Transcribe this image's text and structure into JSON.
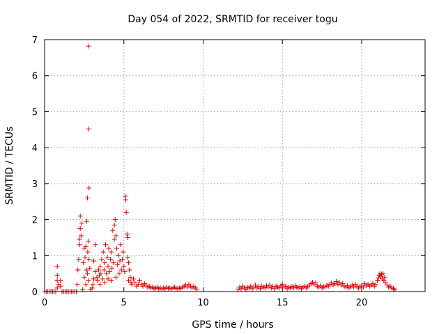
{
  "chart_data": {
    "type": "scatter",
    "title": "Day 054 of 2022, SRMTID for receiver togu",
    "xlabel": "GPS time / hours",
    "ylabel": "SRMTID / TECUs",
    "xlim": [
      0,
      24
    ],
    "ylim": [
      0,
      7
    ],
    "xticks": [
      0,
      5,
      10,
      15,
      20
    ],
    "yticks": [
      0,
      1,
      2,
      3,
      4,
      5,
      6,
      7
    ],
    "grid": true,
    "marker": "plus",
    "color": "#e00000",
    "points": [
      [
        0.0,
        0.0
      ],
      [
        0.1,
        0.0
      ],
      [
        0.2,
        0.0
      ],
      [
        0.3,
        0.0
      ],
      [
        0.4,
        0.0
      ],
      [
        0.5,
        0.0
      ],
      [
        0.6,
        0.0
      ],
      [
        0.7,
        0.0
      ],
      [
        0.8,
        0.1
      ],
      [
        0.8,
        0.3
      ],
      [
        0.8,
        0.45
      ],
      [
        0.8,
        0.7
      ],
      [
        0.9,
        0.2
      ],
      [
        1.0,
        0.15
      ],
      [
        1.0,
        0.3
      ],
      [
        1.1,
        0.0
      ],
      [
        1.2,
        0.0
      ],
      [
        1.3,
        0.0
      ],
      [
        1.4,
        0.0
      ],
      [
        1.5,
        0.0
      ],
      [
        1.6,
        0.0
      ],
      [
        1.7,
        0.0
      ],
      [
        1.8,
        0.0
      ],
      [
        1.9,
        0.0
      ],
      [
        2.0,
        0.0
      ],
      [
        2.05,
        0.2
      ],
      [
        2.1,
        0.6
      ],
      [
        2.15,
        0.9
      ],
      [
        2.2,
        1.3
      ],
      [
        2.2,
        1.45
      ],
      [
        2.25,
        1.75
      ],
      [
        2.25,
        2.1
      ],
      [
        2.3,
        1.55
      ],
      [
        2.35,
        1.9
      ],
      [
        2.4,
        0.05
      ],
      [
        2.45,
        0.8
      ],
      [
        2.5,
        1.2
      ],
      [
        2.5,
        0.4
      ],
      [
        2.55,
        0.95
      ],
      [
        2.6,
        1.25
      ],
      [
        2.6,
        0.2
      ],
      [
        2.65,
        0.6
      ],
      [
        2.65,
        1.95
      ],
      [
        2.7,
        0.5
      ],
      [
        2.7,
        2.6
      ],
      [
        2.72,
        1.1
      ],
      [
        2.75,
        0.3
      ],
      [
        2.75,
        1.4
      ],
      [
        2.78,
        6.82
      ],
      [
        2.78,
        4.52
      ],
      [
        2.8,
        2.88
      ],
      [
        2.8,
        0.9
      ],
      [
        2.85,
        0.65
      ],
      [
        2.9,
        0.05
      ],
      [
        3.0,
        0.1
      ],
      [
        3.05,
        0.2
      ],
      [
        3.1,
        0.85
      ],
      [
        3.1,
        0.35
      ],
      [
        3.2,
        1.3
      ],
      [
        3.2,
        0.55
      ],
      [
        3.3,
        0.4
      ],
      [
        3.35,
        0.3
      ],
      [
        3.4,
        0.6
      ],
      [
        3.45,
        0.45
      ],
      [
        3.5,
        0.7
      ],
      [
        3.5,
        0.2
      ],
      [
        3.55,
        0.5
      ],
      [
        3.6,
        0.9
      ],
      [
        3.65,
        0.35
      ],
      [
        3.7,
        1.1
      ],
      [
        3.75,
        0.6
      ],
      [
        3.8,
        0.8
      ],
      [
        3.8,
        0.25
      ],
      [
        3.85,
        1.3
      ],
      [
        3.9,
        0.5
      ],
      [
        3.95,
        0.95
      ],
      [
        4.0,
        0.7
      ],
      [
        4.0,
        0.35
      ],
      [
        4.05,
        1.2
      ],
      [
        4.1,
        0.55
      ],
      [
        4.15,
        0.9
      ],
      [
        4.2,
        0.3
      ],
      [
        4.2,
        1.1
      ],
      [
        4.25,
        0.65
      ],
      [
        4.3,
        1.7
      ],
      [
        4.35,
        0.8
      ],
      [
        4.4,
        1.85
      ],
      [
        4.4,
        1.45
      ],
      [
        4.45,
        2.0
      ],
      [
        4.5,
        1.55
      ],
      [
        4.5,
        0.4
      ],
      [
        4.55,
        1.2
      ],
      [
        4.6,
        0.75
      ],
      [
        4.65,
        1.0
      ],
      [
        4.7,
        0.5
      ],
      [
        4.75,
        0.85
      ],
      [
        4.8,
        1.3
      ],
      [
        4.85,
        0.6
      ],
      [
        4.9,
        0.9
      ],
      [
        4.95,
        1.1
      ],
      [
        5.0,
        0.7
      ],
      [
        5.05,
        0.55
      ],
      [
        5.1,
        2.65
      ],
      [
        5.12,
        2.55
      ],
      [
        5.15,
        2.2
      ],
      [
        5.2,
        1.6
      ],
      [
        5.25,
        1.5
      ],
      [
        5.25,
        0.95
      ],
      [
        5.3,
        0.8
      ],
      [
        5.3,
        0.3
      ],
      [
        5.35,
        0.6
      ],
      [
        5.4,
        0.4
      ],
      [
        5.45,
        0.25
      ],
      [
        5.5,
        0.2
      ],
      [
        5.6,
        0.35
      ],
      [
        5.7,
        0.25
      ],
      [
        5.8,
        0.15
      ],
      [
        5.9,
        0.2
      ],
      [
        6.0,
        0.3
      ],
      [
        6.1,
        0.2
      ],
      [
        6.2,
        0.15
      ],
      [
        6.3,
        0.22
      ],
      [
        6.4,
        0.18
      ],
      [
        6.5,
        0.12
      ],
      [
        6.6,
        0.15
      ],
      [
        6.7,
        0.1
      ],
      [
        6.8,
        0.12
      ],
      [
        6.9,
        0.08
      ],
      [
        7.0,
        0.1
      ],
      [
        7.1,
        0.12
      ],
      [
        7.2,
        0.08
      ],
      [
        7.3,
        0.1
      ],
      [
        7.4,
        0.07
      ],
      [
        7.5,
        0.1
      ],
      [
        7.6,
        0.08
      ],
      [
        7.7,
        0.12
      ],
      [
        7.8,
        0.09
      ],
      [
        7.9,
        0.1
      ],
      [
        8.0,
        0.08
      ],
      [
        8.1,
        0.1
      ],
      [
        8.2,
        0.12
      ],
      [
        8.3,
        0.09
      ],
      [
        8.4,
        0.08
      ],
      [
        8.5,
        0.1
      ],
      [
        8.6,
        0.09
      ],
      [
        8.7,
        0.12
      ],
      [
        8.8,
        0.15
      ],
      [
        8.9,
        0.18
      ],
      [
        9.0,
        0.12
      ],
      [
        9.1,
        0.2
      ],
      [
        9.2,
        0.15
      ],
      [
        9.3,
        0.1
      ],
      [
        9.4,
        0.14
      ],
      [
        9.5,
        0.1
      ],
      [
        9.6,
        0.06
      ],
      [
        12.2,
        0.05
      ],
      [
        12.3,
        0.12
      ],
      [
        12.4,
        0.08
      ],
      [
        12.5,
        0.15
      ],
      [
        12.6,
        0.1
      ],
      [
        12.7,
        0.05
      ],
      [
        12.8,
        0.12
      ],
      [
        12.9,
        0.1
      ],
      [
        13.0,
        0.15
      ],
      [
        13.1,
        0.08
      ],
      [
        13.2,
        0.12
      ],
      [
        13.3,
        0.18
      ],
      [
        13.4,
        0.1
      ],
      [
        13.5,
        0.14
      ],
      [
        13.6,
        0.08
      ],
      [
        13.7,
        0.15
      ],
      [
        13.8,
        0.12
      ],
      [
        13.9,
        0.1
      ],
      [
        14.0,
        0.16
      ],
      [
        14.1,
        0.12
      ],
      [
        14.2,
        0.18
      ],
      [
        14.3,
        0.1
      ],
      [
        14.4,
        0.14
      ],
      [
        14.5,
        0.08
      ],
      [
        14.6,
        0.15
      ],
      [
        14.7,
        0.12
      ],
      [
        14.8,
        0.1
      ],
      [
        14.9,
        0.16
      ],
      [
        15.0,
        0.2
      ],
      [
        15.1,
        0.12
      ],
      [
        15.2,
        0.15
      ],
      [
        15.3,
        0.08
      ],
      [
        15.4,
        0.12
      ],
      [
        15.5,
        0.1
      ],
      [
        15.6,
        0.14
      ],
      [
        15.7,
        0.1
      ],
      [
        15.8,
        0.16
      ],
      [
        15.9,
        0.12
      ],
      [
        16.0,
        0.1
      ],
      [
        16.1,
        0.14
      ],
      [
        16.2,
        0.08
      ],
      [
        16.3,
        0.12
      ],
      [
        16.4,
        0.15
      ],
      [
        16.5,
        0.1
      ],
      [
        16.6,
        0.14
      ],
      [
        16.7,
        0.18
      ],
      [
        16.8,
        0.22
      ],
      [
        16.9,
        0.26
      ],
      [
        17.0,
        0.2
      ],
      [
        17.1,
        0.24
      ],
      [
        17.2,
        0.15
      ],
      [
        17.3,
        0.12
      ],
      [
        17.4,
        0.16
      ],
      [
        17.5,
        0.1
      ],
      [
        17.6,
        0.14
      ],
      [
        17.7,
        0.12
      ],
      [
        17.8,
        0.18
      ],
      [
        17.9,
        0.15
      ],
      [
        18.0,
        0.2
      ],
      [
        18.1,
        0.24
      ],
      [
        18.2,
        0.18
      ],
      [
        18.3,
        0.22
      ],
      [
        18.4,
        0.28
      ],
      [
        18.5,
        0.2
      ],
      [
        18.6,
        0.25
      ],
      [
        18.7,
        0.18
      ],
      [
        18.8,
        0.22
      ],
      [
        18.9,
        0.15
      ],
      [
        19.0,
        0.12
      ],
      [
        19.1,
        0.16
      ],
      [
        19.2,
        0.1
      ],
      [
        19.3,
        0.14
      ],
      [
        19.4,
        0.18
      ],
      [
        19.5,
        0.12
      ],
      [
        19.6,
        0.2
      ],
      [
        19.7,
        0.15
      ],
      [
        19.8,
        0.1
      ],
      [
        19.9,
        0.14
      ],
      [
        20.0,
        0.18
      ],
      [
        20.1,
        0.12
      ],
      [
        20.2,
        0.22
      ],
      [
        20.3,
        0.16
      ],
      [
        20.4,
        0.2
      ],
      [
        20.5,
        0.15
      ],
      [
        20.6,
        0.18
      ],
      [
        20.7,
        0.22
      ],
      [
        20.8,
        0.15
      ],
      [
        20.9,
        0.2
      ],
      [
        21.0,
        0.3
      ],
      [
        21.05,
        0.38
      ],
      [
        21.1,
        0.45
      ],
      [
        21.15,
        0.5
      ],
      [
        21.2,
        0.42
      ],
      [
        21.25,
        0.48
      ],
      [
        21.3,
        0.35
      ],
      [
        21.35,
        0.5
      ],
      [
        21.4,
        0.3
      ],
      [
        21.45,
        0.4
      ],
      [
        21.5,
        0.25
      ],
      [
        21.6,
        0.18
      ],
      [
        21.7,
        0.12
      ],
      [
        21.8,
        0.15
      ],
      [
        21.9,
        0.1
      ],
      [
        22.0,
        0.08
      ],
      [
        22.1,
        0.05
      ]
    ]
  }
}
